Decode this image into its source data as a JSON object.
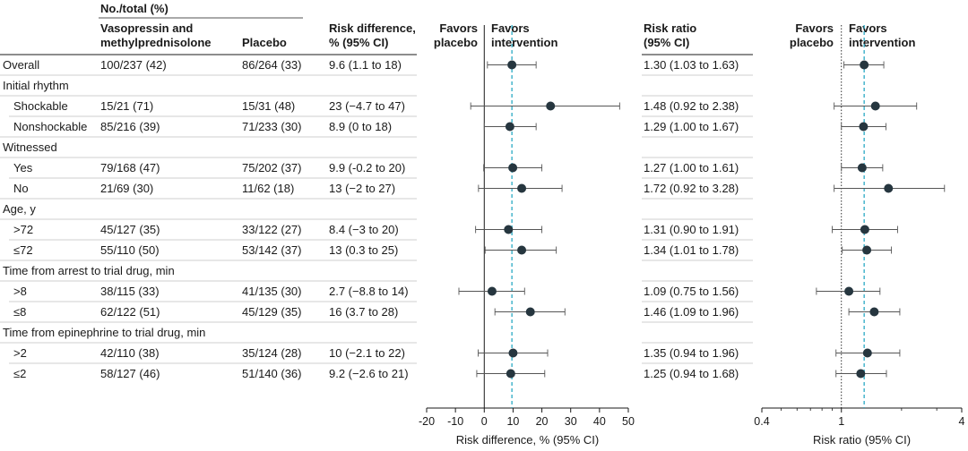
{
  "headers": {
    "group": "No./total (%)",
    "treatment": [
      "Vasopressin and",
      "methylprednisolone"
    ],
    "placebo": "Placebo",
    "risk_difference": [
      "Risk difference,",
      "% (95% CI)"
    ],
    "risk_ratio": [
      "Risk ratio",
      "(95% CI)"
    ],
    "favors_placebo": [
      "Favors",
      "placebo"
    ],
    "favors_intervention": [
      "Favors",
      "intervention"
    ]
  },
  "rows": [
    {
      "label": "Overall",
      "category": false,
      "treatment": "100/237 (42)",
      "placebo": "86/264 (33)",
      "rd_text": "9.6 (1.1 to 18)",
      "rr_text": "1.30 (1.03 to 1.63)"
    },
    {
      "label": "Initial rhythm",
      "category": true
    },
    {
      "label": "Shockable",
      "category": false,
      "treatment": "15/21 (71)",
      "placebo": "15/31 (48)",
      "rd_text": "23 (−4.7 to 47)",
      "rr_text": "1.48 (0.92 to 2.38)"
    },
    {
      "label": "Nonshockable",
      "category": false,
      "treatment": "85/216 (39)",
      "placebo": "71/233 (30)",
      "rd_text": "8.9 (0 to 18)",
      "rr_text": "1.29 (1.00 to 1.67)"
    },
    {
      "label": "Witnessed",
      "category": true
    },
    {
      "label": "Yes",
      "category": false,
      "treatment": "79/168 (47)",
      "placebo": "75/202 (37)",
      "rd_text": "9.9 (-0.2 to 20)",
      "rr_text": "1.27 (1.00 to 1.61)"
    },
    {
      "label": "No",
      "category": false,
      "treatment": "21/69 (30)",
      "placebo": "11/62 (18)",
      "rd_text": "13 (−2 to 27)",
      "rr_text": "1.72 (0.92 to 3.28)"
    },
    {
      "label": "Age, y",
      "category": true
    },
    {
      "label": ">72",
      "category": false,
      "treatment": "45/127 (35)",
      "placebo": "33/122 (27)",
      "rd_text": "8.4 (−3 to 20)",
      "rr_text": "1.31 (0.90 to 1.91)"
    },
    {
      "label": "≤72",
      "category": false,
      "treatment": "55/110 (50)",
      "placebo": "53/142 (37)",
      "rd_text": "13 (0.3 to 25)",
      "rr_text": "1.34 (1.01 to 1.78)"
    },
    {
      "label": "Time from arrest to trial drug, min",
      "category": true
    },
    {
      "label": ">8",
      "category": false,
      "treatment": "38/115 (33)",
      "placebo": "41/135 (30)",
      "rd_text": "2.7 (−8.8 to 14)",
      "rr_text": "1.09 (0.75 to 1.56)"
    },
    {
      "label": "≤8",
      "category": false,
      "treatment": "62/122 (51)",
      "placebo": "45/129 (35)",
      "rd_text": "16 (3.7 to 28)",
      "rr_text": "1.46 (1.09 to 1.96)"
    },
    {
      "label": "Time from epinephrine to trial drug, min",
      "category": true
    },
    {
      "label": ">2",
      "category": false,
      "treatment": "42/110 (38)",
      "placebo": "35/124 (28)",
      "rd_text": "10 (−2.1 to 22)",
      "rr_text": "1.35 (0.94 to 1.96)"
    },
    {
      "label": "≤2",
      "category": false,
      "treatment": "58/127 (46)",
      "placebo": "51/140 (36)",
      "rd_text": "9.2 (−2.6 to 21)",
      "rr_text": "1.25 (0.94 to 1.68)"
    }
  ],
  "chart_data": [
    {
      "type": "forest",
      "xlabel": "Risk difference, % (95% CI)",
      "xlim": [
        -20,
        50
      ],
      "xticks": [
        -20,
        -10,
        0,
        10,
        20,
        30,
        40,
        50
      ],
      "null_value": 0,
      "reference_value": 9.6,
      "subgroups": [
        "Overall",
        "Shockable",
        "Nonshockable",
        "Yes",
        "No",
        ">72",
        "≤72",
        ">8",
        "≤8",
        ">2",
        "≤2"
      ],
      "estimate": [
        9.6,
        23,
        8.9,
        9.9,
        13,
        8.4,
        13,
        2.7,
        16,
        10,
        9.2
      ],
      "lower": [
        1.1,
        -4.7,
        0,
        -0.2,
        -2,
        -3,
        0.3,
        -8.8,
        3.7,
        -2.1,
        -2.6
      ],
      "upper": [
        18,
        47,
        18,
        20,
        27,
        20,
        25,
        14,
        28,
        22,
        21
      ]
    },
    {
      "type": "forest",
      "xlabel": "Risk ratio (95% CI)",
      "scale": "log",
      "xlim": [
        0.4,
        4
      ],
      "xticks": [
        0.4,
        1,
        4
      ],
      "null_value": 1,
      "reference_value": 1.3,
      "subgroups": [
        "Overall",
        "Shockable",
        "Nonshockable",
        "Yes",
        "No",
        ">72",
        "≤72",
        ">8",
        "≤8",
        ">2",
        "≤2"
      ],
      "estimate": [
        1.3,
        1.48,
        1.29,
        1.27,
        1.72,
        1.31,
        1.34,
        1.09,
        1.46,
        1.35,
        1.25
      ],
      "lower": [
        1.03,
        0.92,
        1.0,
        1.0,
        0.92,
        0.9,
        1.01,
        0.75,
        1.09,
        0.94,
        0.94
      ],
      "upper": [
        1.63,
        2.38,
        1.67,
        1.61,
        3.28,
        1.91,
        1.78,
        1.56,
        1.96,
        1.96,
        1.68
      ]
    }
  ],
  "colors": {
    "marker": "#26363f",
    "ci_line": "#555555",
    "reference_line": "#2aa9c4",
    "row_divider": "#bfbfbf",
    "axis": "#1a1a1a"
  }
}
